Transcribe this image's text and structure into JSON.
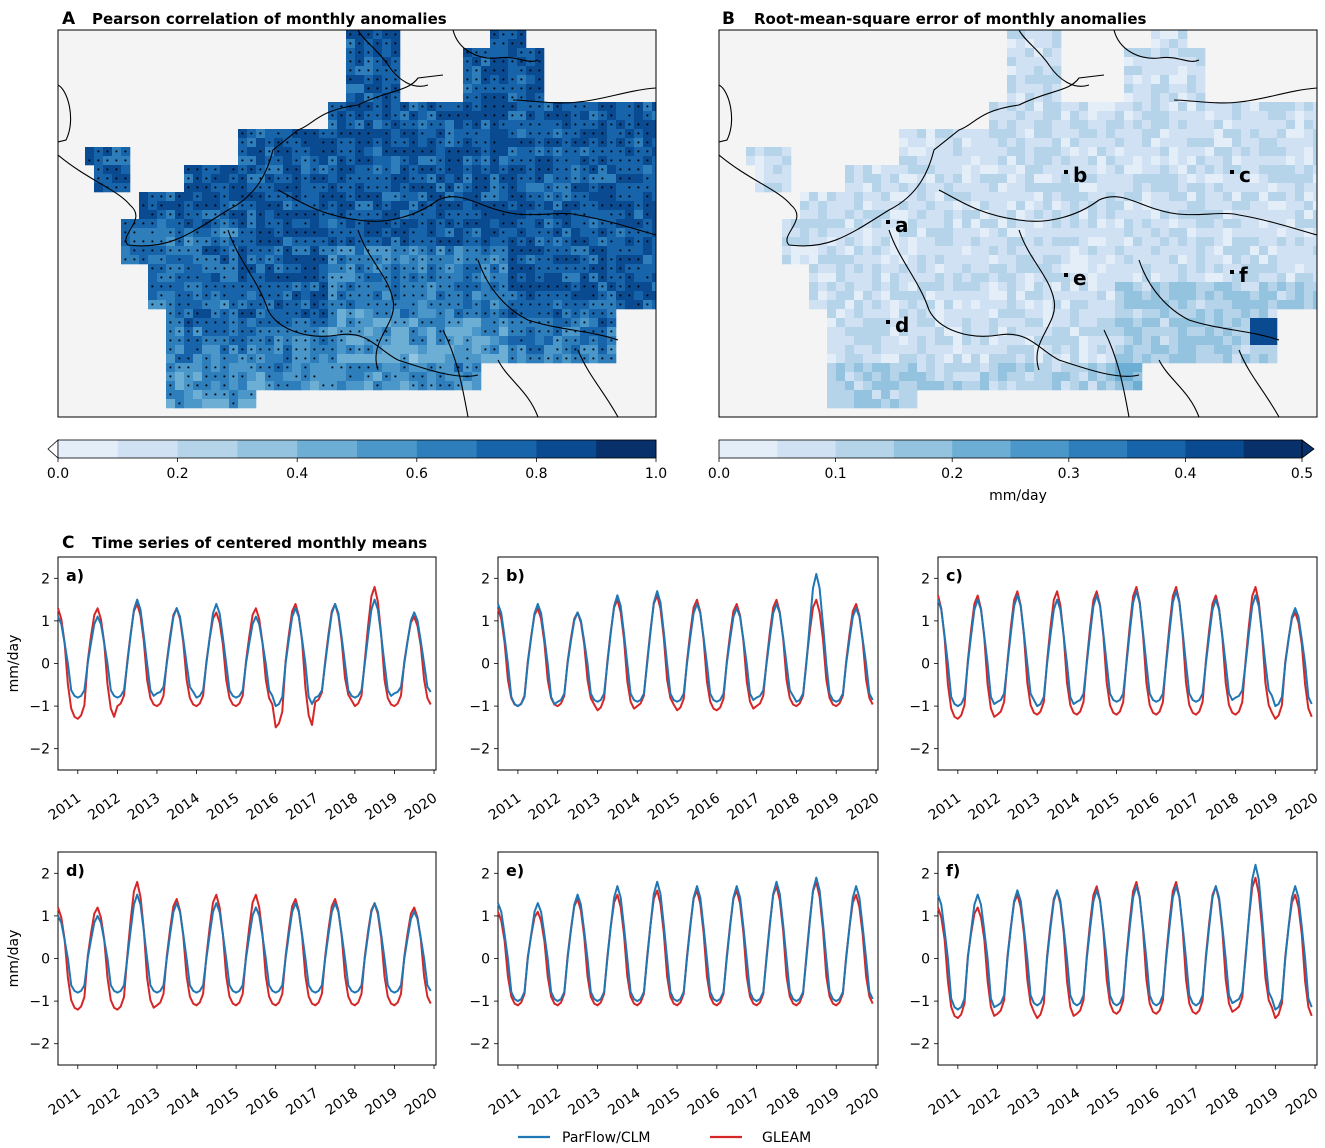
{
  "colors": {
    "parflow": "#1f77b4",
    "gleam": "#d62728",
    "land_bg": "#f4f4f4",
    "blues": [
      "#f7fbff",
      "#e3eef9",
      "#cfe1f2",
      "#b5d4e9",
      "#93c3df",
      "#6daed5",
      "#4b97c9",
      "#2f7ebc",
      "#1864aa",
      "#0a4a90",
      "#08306b"
    ]
  },
  "panelA": {
    "letter": "A",
    "title": "Pearson correlation of monthly anomalies",
    "colorbar": {
      "ticks": [
        "0.0",
        "0.2",
        "0.4",
        "0.6",
        "0.8",
        "1.0"
      ],
      "min": 0,
      "max": 1,
      "levels": 10,
      "extend": "min",
      "label": ""
    }
  },
  "panelB": {
    "letter": "B",
    "title": "Root-mean-square error of monthly anomalies",
    "colorbar": {
      "ticks": [
        "0.0",
        "0.1",
        "0.2",
        "0.3",
        "0.4",
        "0.5"
      ],
      "min": 0,
      "max": 0.5,
      "levels": 10,
      "extend": "max",
      "label": "mm/day"
    },
    "station_labels": [
      "a",
      "b",
      "c",
      "d",
      "e",
      "f"
    ]
  },
  "panelC": {
    "letter": "C",
    "title": "Time series of centered monthly means",
    "ylabel": "mm/day",
    "yticks": [
      "2",
      "1",
      "0",
      "−1",
      "−2"
    ],
    "xticks": [
      "2011",
      "2012",
      "2013",
      "2014",
      "2015",
      "2016",
      "2017",
      "2018",
      "2019",
      "2020"
    ]
  },
  "legend": {
    "parflow": "ParFlow/CLM",
    "gleam": "GLEAM"
  },
  "chart_data": [
    {
      "type": "heatmap",
      "title": "Pearson correlation of monthly anomalies",
      "variable": "Pearson correlation",
      "value_range": [
        0,
        1
      ],
      "colorbar_ticks": [
        0.0,
        0.2,
        0.4,
        0.6,
        0.8,
        1.0
      ],
      "note_values": "mostly 0.6-0.9 over central Europe, lower (0.3-0.5) over the Alps and Po valley; stippled cells mark significance"
    },
    {
      "type": "heatmap",
      "title": "Root-mean-square error of monthly anomalies",
      "variable": "RMSE",
      "unit": "mm/day",
      "value_range": [
        0,
        0.5
      ],
      "colorbar_ticks": [
        0.0,
        0.1,
        0.2,
        0.3,
        0.4,
        0.5
      ],
      "note_values": "mostly 0.05-0.2 mm/day; local maxima near 0.4-0.5 mm/day in the southeast"
    },
    {
      "type": "line",
      "title": "Time series of centered monthly means",
      "ylabel": "mm/day",
      "ylim": [
        -2.5,
        2.5
      ],
      "xlim": [
        "2010-07",
        "2020-01"
      ],
      "x_unit": "year",
      "panels": [
        {
          "label": "a)",
          "series": [
            {
              "name": "ParFlow/CLM",
              "peaks": [
                1.1,
                1.5,
                1.3,
                1.4,
                1.1,
                1.3,
                1.4,
                1.5,
                1.2
              ],
              "troughs": [
                -0.8,
                -0.8,
                -0.7,
                -0.8,
                -0.8,
                -1.0,
                -0.8,
                -0.8,
                -0.7
              ]
            },
            {
              "name": "GLEAM",
              "peaks": [
                1.3,
                1.4,
                1.3,
                1.2,
                1.3,
                1.4,
                1.4,
                1.8,
                1.1
              ],
              "troughs": [
                -1.3,
                -1.0,
                -1.0,
                -1.0,
                -1.0,
                -1.5,
                -0.9,
                -1.0,
                -1.0
              ]
            }
          ]
        },
        {
          "label": "b)",
          "series": [
            {
              "name": "ParFlow/CLM",
              "peaks": [
                1.4,
                1.2,
                1.6,
                1.7,
                1.4,
                1.3,
                1.4,
                2.1,
                1.3
              ],
              "troughs": [
                -1.0,
                -0.9,
                -0.9,
                -0.9,
                -0.9,
                -0.9,
                -0.8,
                -0.9,
                -0.9
              ]
            },
            {
              "name": "GLEAM",
              "peaks": [
                1.3,
                1.2,
                1.5,
                1.6,
                1.5,
                1.4,
                1.5,
                1.5,
                1.4
              ],
              "troughs": [
                -1.0,
                -1.0,
                -1.1,
                -1.0,
                -1.1,
                -1.1,
                -1.0,
                -1.0,
                -1.0
              ]
            }
          ]
        },
        {
          "label": "c)",
          "series": [
            {
              "name": "ParFlow/CLM",
              "peaks": [
                1.5,
                1.6,
                1.5,
                1.6,
                1.7,
                1.7,
                1.5,
                1.6,
                1.3
              ],
              "troughs": [
                -1.0,
                -0.9,
                -1.0,
                -0.9,
                -0.9,
                -0.9,
                -0.9,
                -0.8,
                -1.0
              ]
            },
            {
              "name": "GLEAM",
              "peaks": [
                1.6,
                1.7,
                1.7,
                1.7,
                1.8,
                1.8,
                1.6,
                1.8,
                1.2
              ],
              "troughs": [
                -1.3,
                -1.2,
                -1.2,
                -1.2,
                -1.2,
                -1.2,
                -1.2,
                -1.2,
                -1.3
              ]
            }
          ]
        },
        {
          "label": "d)",
          "series": [
            {
              "name": "ParFlow/CLM",
              "peaks": [
                1.0,
                1.5,
                1.3,
                1.3,
                1.2,
                1.3,
                1.3,
                1.3,
                1.1
              ],
              "troughs": [
                -0.8,
                -0.8,
                -0.8,
                -0.8,
                -0.8,
                -0.8,
                -0.8,
                -0.8,
                -0.8
              ]
            },
            {
              "name": "GLEAM",
              "peaks": [
                1.2,
                1.8,
                1.4,
                1.5,
                1.5,
                1.4,
                1.4,
                1.3,
                1.2
              ],
              "troughs": [
                -1.2,
                -1.2,
                -1.1,
                -1.1,
                -1.1,
                -1.1,
                -1.1,
                -1.1,
                -1.1
              ]
            }
          ]
        },
        {
          "label": "e)",
          "series": [
            {
              "name": "ParFlow/CLM",
              "peaks": [
                1.3,
                1.5,
                1.7,
                1.8,
                1.7,
                1.7,
                1.8,
                1.9,
                1.7
              ],
              "troughs": [
                -1.0,
                -1.0,
                -1.0,
                -1.0,
                -1.0,
                -1.0,
                -1.0,
                -1.0,
                -1.0
              ]
            },
            {
              "name": "GLEAM",
              "peaks": [
                1.1,
                1.4,
                1.5,
                1.6,
                1.6,
                1.6,
                1.7,
                1.8,
                1.5
              ],
              "troughs": [
                -1.1,
                -1.1,
                -1.1,
                -1.1,
                -1.1,
                -1.1,
                -1.1,
                -1.1,
                -1.1
              ]
            }
          ]
        },
        {
          "label": "f)",
          "series": [
            {
              "name": "ParFlow/CLM",
              "peaks": [
                1.5,
                1.6,
                1.6,
                1.6,
                1.7,
                1.7,
                1.7,
                2.2,
                1.7
              ],
              "troughs": [
                -1.2,
                -1.1,
                -1.1,
                -1.1,
                -1.1,
                -1.1,
                -1.1,
                -1.0,
                -1.2
              ]
            },
            {
              "name": "GLEAM",
              "peaks": [
                1.2,
                1.5,
                1.6,
                1.7,
                1.8,
                1.8,
                1.7,
                1.9,
                1.5
              ],
              "troughs": [
                -1.4,
                -1.3,
                -1.4,
                -1.3,
                -1.3,
                -1.3,
                -1.3,
                -1.2,
                -1.4
              ]
            }
          ]
        }
      ]
    }
  ]
}
